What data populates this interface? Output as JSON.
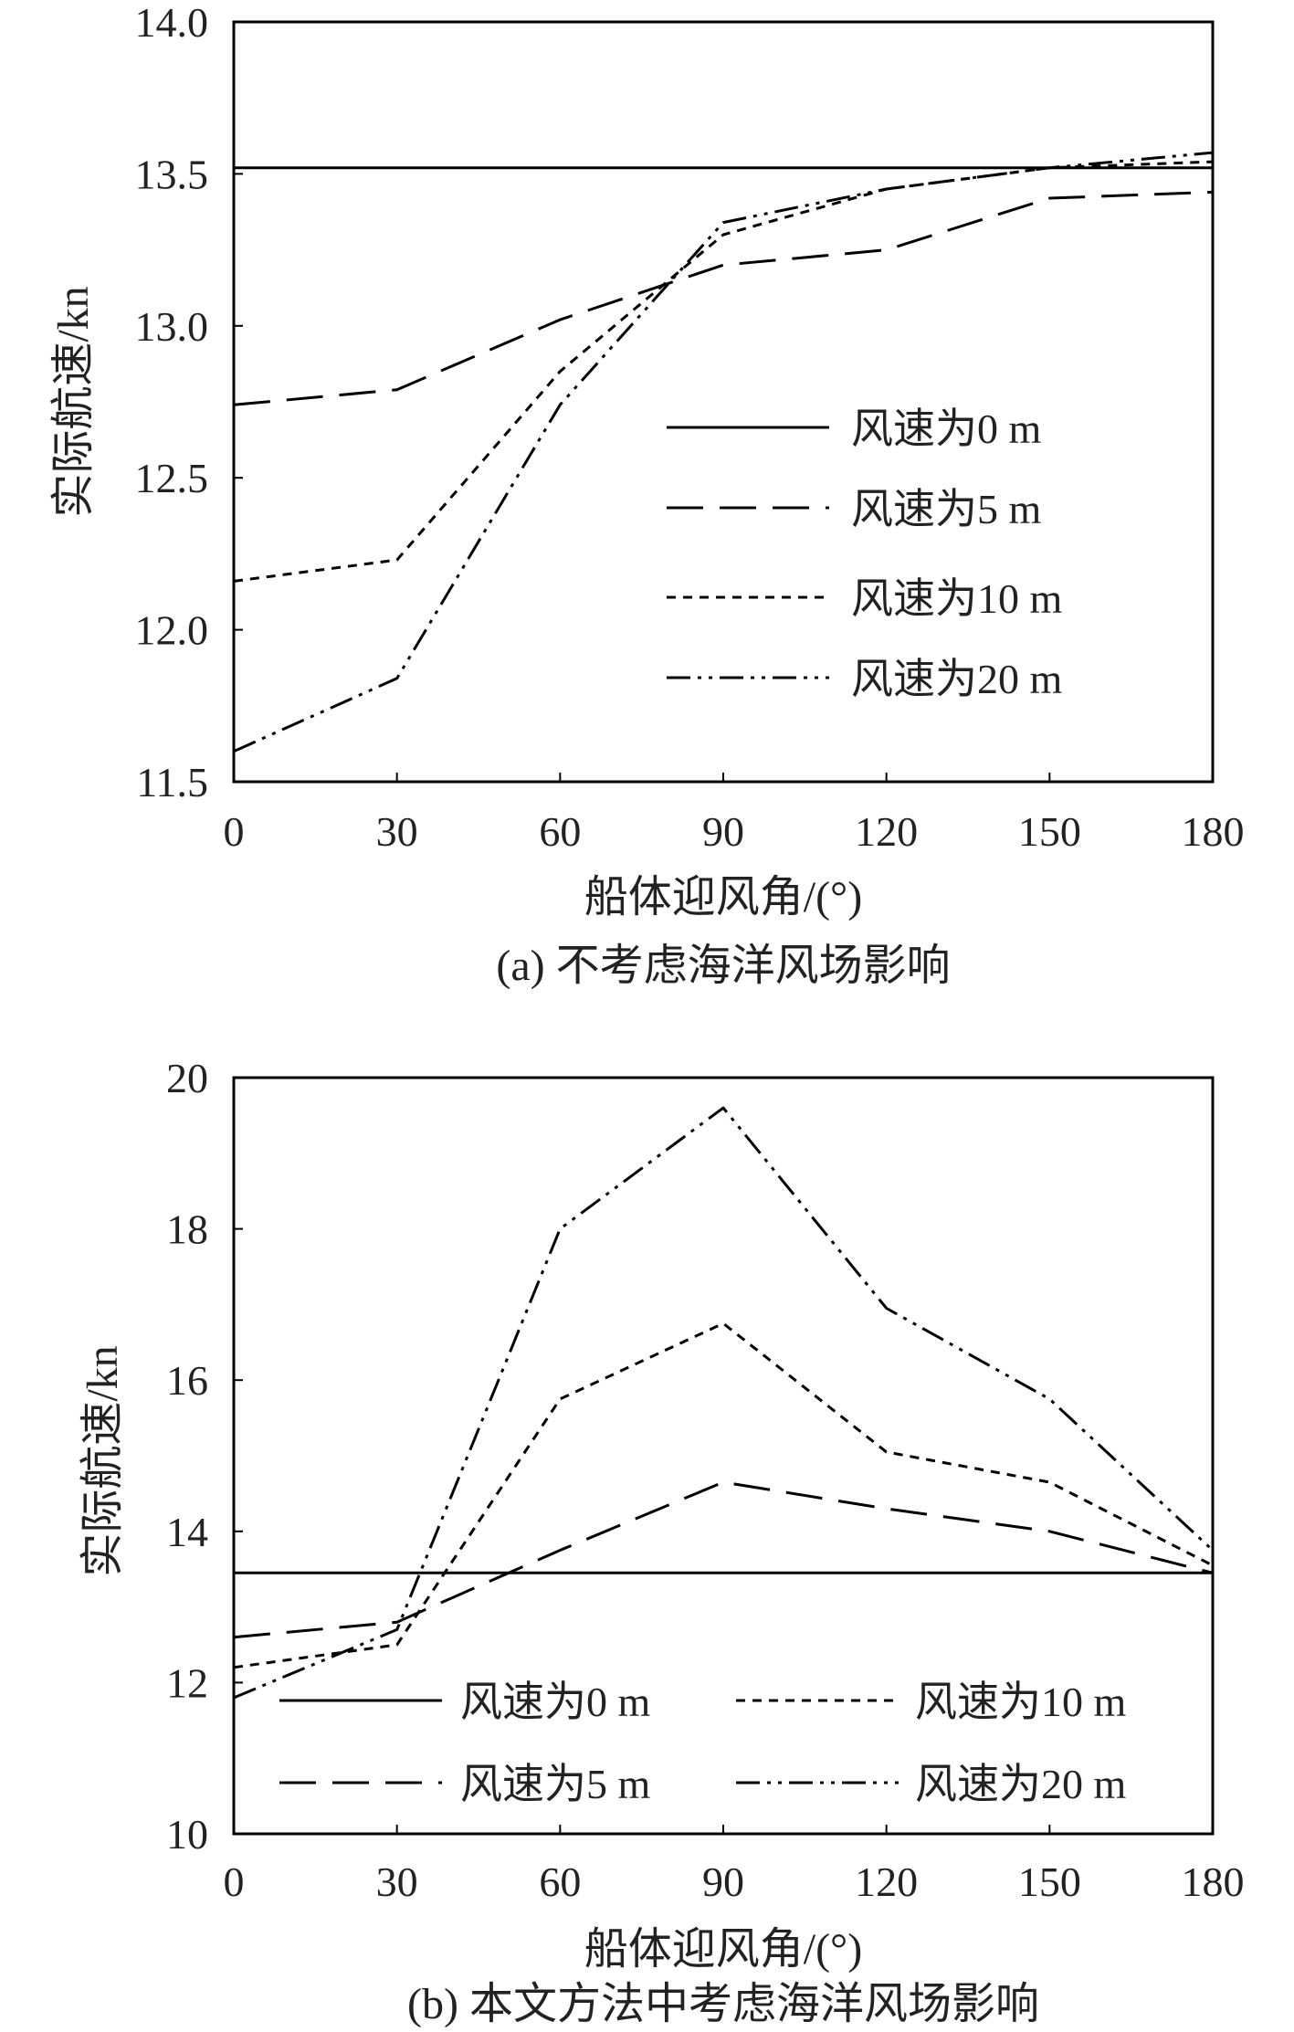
{
  "chart_data": [
    {
      "type": "line",
      "panel": "a",
      "caption": "(a) 不考虑海洋风场影响",
      "xlabel": "船体迎风角/(°)",
      "ylabel": "实际航速/kn",
      "xlim": [
        0,
        180
      ],
      "ylim": [
        11.5,
        14.0
      ],
      "xticks": [
        0,
        30,
        60,
        90,
        120,
        150,
        180
      ],
      "yticks": [
        "11.5",
        "12.0",
        "12.5",
        "13.0",
        "13.5",
        "14.0"
      ],
      "x": [
        0,
        30,
        60,
        90,
        120,
        150,
        180
      ],
      "legend_position": "lower-right",
      "series": [
        {
          "name": "风速为0 m",
          "style": "solid",
          "values": [
            13.52,
            13.52,
            13.52,
            13.52,
            13.52,
            13.52,
            13.52
          ]
        },
        {
          "name": "风速为5 m",
          "style": "longdash",
          "values": [
            12.74,
            12.79,
            13.02,
            13.2,
            13.25,
            13.42,
            13.44
          ]
        },
        {
          "name": "风速为10 m",
          "style": "shortdash",
          "values": [
            12.16,
            12.23,
            12.85,
            13.3,
            13.45,
            13.52,
            13.54
          ]
        },
        {
          "name": "风速为20 m",
          "style": "dashdotdot",
          "values": [
            11.6,
            11.84,
            12.74,
            13.34,
            13.45,
            13.52,
            13.57
          ]
        }
      ]
    },
    {
      "type": "line",
      "panel": "b",
      "caption": "(b) 本文方法中考虑海洋风场影响",
      "xlabel": "船体迎风角/(°)",
      "ylabel": "实际航速/kn",
      "xlim": [
        0,
        180
      ],
      "ylim": [
        10,
        20
      ],
      "xticks": [
        0,
        30,
        60,
        90,
        120,
        150,
        180
      ],
      "yticks": [
        "10",
        "12",
        "14",
        "16",
        "18",
        "20"
      ],
      "x": [
        0,
        30,
        60,
        90,
        120,
        150,
        180
      ],
      "legend_position": "bottom",
      "series": [
        {
          "name": "风速为0 m",
          "style": "solid",
          "values": [
            13.45,
            13.45,
            13.45,
            13.45,
            13.45,
            13.45,
            13.45
          ]
        },
        {
          "name": "风速为5 m",
          "style": "longdash",
          "values": [
            12.6,
            12.8,
            13.75,
            14.65,
            14.3,
            14.0,
            13.45
          ]
        },
        {
          "name": "风速为10 m",
          "style": "shortdash",
          "values": [
            12.2,
            12.5,
            15.75,
            16.75,
            15.05,
            14.65,
            13.55
          ]
        },
        {
          "name": "风速为20 m",
          "style": "dashdotdot",
          "values": [
            11.8,
            12.7,
            18.0,
            19.6,
            16.95,
            15.75,
            13.75
          ]
        }
      ]
    }
  ]
}
